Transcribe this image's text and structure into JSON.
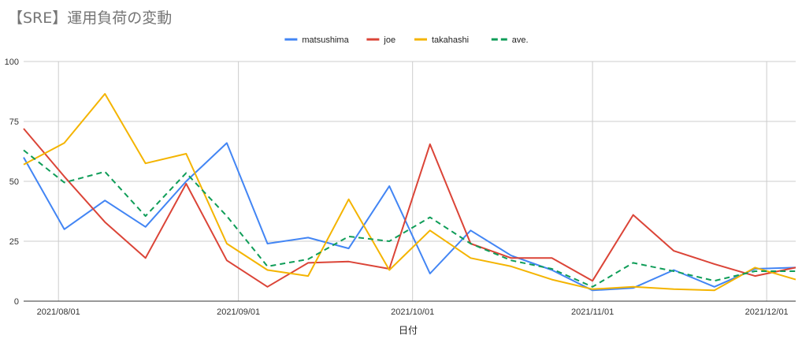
{
  "chart_data": {
    "type": "line",
    "title": "【SRE】運用負荷の変動",
    "xlabel": "日付",
    "ylabel": "",
    "ylim": [
      0,
      100
    ],
    "yticks": [
      0,
      25,
      50,
      75,
      100
    ],
    "xticks": [
      "2021/08/01",
      "2021/09/01",
      "2021/10/01",
      "2021/11/01",
      "2021/12/01"
    ],
    "x": [
      "2021/07/26",
      "2021/08/02",
      "2021/08/09",
      "2021/08/16",
      "2021/08/23",
      "2021/08/30",
      "2021/09/06",
      "2021/09/13",
      "2021/09/20",
      "2021/09/27",
      "2021/10/04",
      "2021/10/11",
      "2021/10/18",
      "2021/10/25",
      "2021/11/01",
      "2021/11/08",
      "2021/11/15",
      "2021/11/22",
      "2021/11/29",
      "2021/12/06"
    ],
    "grid": true,
    "legend_position": "top",
    "series": [
      {
        "name": "matsushima",
        "color": "#4285f4",
        "dash": false,
        "values": [
          60,
          30,
          42,
          31,
          50,
          66,
          24,
          26.5,
          22,
          48,
          11.5,
          29.5,
          19,
          13,
          4.5,
          5.5,
          13,
          6,
          13.5,
          14
        ]
      },
      {
        "name": "joe",
        "color": "#db4437",
        "dash": false,
        "values": [
          72,
          52,
          33,
          18,
          49,
          17,
          6,
          16,
          16.5,
          13.5,
          65.5,
          24,
          18,
          18,
          8.5,
          36,
          21,
          15.5,
          10.5,
          14
        ]
      },
      {
        "name": "takahashi",
        "color": "#f4b400",
        "dash": false,
        "values": [
          57,
          66,
          86.5,
          57.5,
          61.5,
          24,
          13,
          10.5,
          42.5,
          13,
          29.5,
          18,
          14.5,
          9,
          5,
          6,
          5,
          4.5,
          14,
          9
        ]
      },
      {
        "name": "ave.",
        "color": "#0f9d58",
        "dash": true,
        "values": [
          63,
          49.5,
          54,
          35.5,
          53.5,
          35.5,
          14.5,
          17.5,
          27,
          25,
          35,
          24,
          17,
          13.5,
          6,
          16,
          12.5,
          8.5,
          12.5,
          12.5
        ]
      }
    ]
  }
}
